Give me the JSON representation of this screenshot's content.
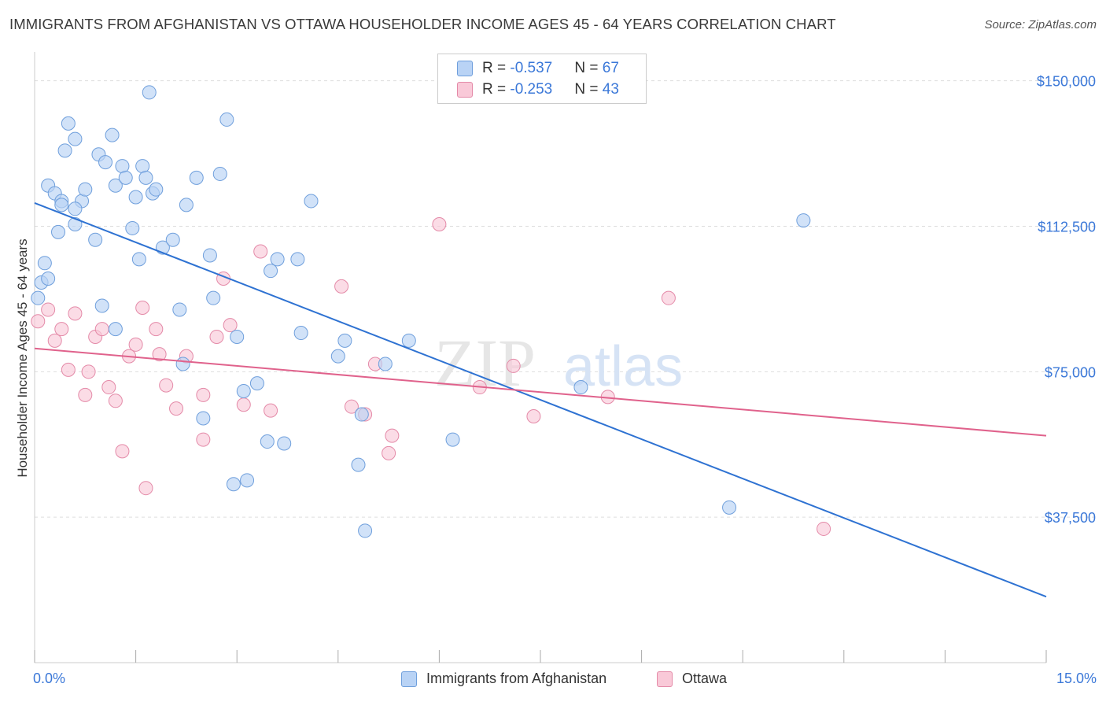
{
  "title": "IMMIGRANTS FROM AFGHANISTAN VS OTTAWA HOUSEHOLDER INCOME AGES 45 - 64 YEARS CORRELATION CHART",
  "source": "Source: ZipAtlas.com",
  "watermark": {
    "zip": "ZIP",
    "atlas": "atlas"
  },
  "legend": {
    "rows": [
      {
        "r_label": "R = ",
        "r_value": "-0.537",
        "n_label": "N = ",
        "n_value": "67"
      },
      {
        "r_label": "R = ",
        "r_value": "-0.253",
        "n_label": "N = ",
        "n_value": "43"
      }
    ]
  },
  "bottom_legend": {
    "series1": "Immigrants from Afghanistan",
    "series2": "Ottawa"
  },
  "x_axis": {
    "min_label": "0.0%",
    "max_label": "15.0%"
  },
  "colors": {
    "blue_fill": "#b9d3f5",
    "blue_stroke": "#6f9fdc",
    "blue_line": "#2e72d2",
    "pink_fill": "#f9c9d8",
    "pink_stroke": "#e48aa8",
    "pink_line": "#e0628c",
    "tick_label": "#3b78d8",
    "grid": "#dddddd"
  },
  "chart_data": {
    "type": "scatter",
    "title": "IMMIGRANTS FROM AFGHANISTAN VS OTTAWA HOUSEHOLDER INCOME AGES 45 - 64 YEARS CORRELATION CHART",
    "xlabel": "",
    "ylabel": "Householder Income Ages 45 - 64 years",
    "xlim": [
      0,
      15
    ],
    "ylim": [
      0,
      155000
    ],
    "y_ticks": [
      37500,
      75000,
      112500,
      150000
    ],
    "y_tick_labels": [
      "$37,500",
      "$75,000",
      "$112,500",
      "$150,000"
    ],
    "grid": true,
    "legend_position": "top-center",
    "series": [
      {
        "name": "Immigrants from Afghanistan",
        "color": "#6f9fdc",
        "points": [
          [
            0.05,
            94000
          ],
          [
            0.1,
            98000
          ],
          [
            0.15,
            103000
          ],
          [
            0.2,
            99000
          ],
          [
            0.2,
            123000
          ],
          [
            0.3,
            121000
          ],
          [
            0.35,
            111000
          ],
          [
            0.4,
            119000
          ],
          [
            0.4,
            118000
          ],
          [
            0.45,
            132000
          ],
          [
            0.5,
            139000
          ],
          [
            0.6,
            135000
          ],
          [
            0.6,
            113000
          ],
          [
            0.7,
            119000
          ],
          [
            0.75,
            122000
          ],
          [
            0.6,
            117000
          ],
          [
            0.9,
            109000
          ],
          [
            0.95,
            131000
          ],
          [
            1.0,
            92000
          ],
          [
            1.05,
            129000
          ],
          [
            1.15,
            136000
          ],
          [
            1.2,
            123000
          ],
          [
            1.3,
            128000
          ],
          [
            1.35,
            125000
          ],
          [
            1.45,
            112000
          ],
          [
            1.5,
            120000
          ],
          [
            1.55,
            104000
          ],
          [
            1.6,
            128000
          ],
          [
            1.65,
            125000
          ],
          [
            1.75,
            121000
          ],
          [
            1.7,
            147000
          ],
          [
            1.8,
            122000
          ],
          [
            1.9,
            107000
          ],
          [
            2.05,
            109000
          ],
          [
            2.15,
            91000
          ],
          [
            2.25,
            118000
          ],
          [
            2.4,
            125000
          ],
          [
            2.6,
            105000
          ],
          [
            2.65,
            94000
          ],
          [
            2.75,
            126000
          ],
          [
            2.85,
            140000
          ],
          [
            3.0,
            84000
          ],
          [
            3.1,
            70000
          ],
          [
            3.15,
            47000
          ],
          [
            3.3,
            72000
          ],
          [
            3.45,
            57000
          ],
          [
            3.5,
            101000
          ],
          [
            3.6,
            104000
          ],
          [
            3.7,
            56500
          ],
          [
            3.9,
            104000
          ],
          [
            3.95,
            85000
          ],
          [
            4.1,
            119000
          ],
          [
            4.5,
            79000
          ],
          [
            4.6,
            83000
          ],
          [
            4.8,
            51000
          ],
          [
            4.85,
            64000
          ],
          [
            4.9,
            34000
          ],
          [
            5.2,
            77000
          ],
          [
            5.55,
            83000
          ],
          [
            6.2,
            57500
          ],
          [
            8.1,
            71000
          ],
          [
            10.3,
            40000
          ],
          [
            11.4,
            114000
          ],
          [
            1.2,
            86000
          ],
          [
            2.2,
            77000
          ],
          [
            2.5,
            63000
          ],
          [
            2.95,
            46000
          ]
        ]
      },
      {
        "name": "Ottawa",
        "color": "#e48aa8",
        "points": [
          [
            0.05,
            88000
          ],
          [
            0.2,
            91000
          ],
          [
            0.3,
            83000
          ],
          [
            0.4,
            86000
          ],
          [
            0.5,
            75500
          ],
          [
            0.6,
            90000
          ],
          [
            0.75,
            69000
          ],
          [
            0.8,
            75000
          ],
          [
            0.9,
            84000
          ],
          [
            1.0,
            86000
          ],
          [
            1.1,
            71000
          ],
          [
            1.2,
            67500
          ],
          [
            1.3,
            54500
          ],
          [
            1.4,
            79000
          ],
          [
            1.5,
            82000
          ],
          [
            1.6,
            91500
          ],
          [
            1.65,
            45000
          ],
          [
            1.8,
            86000
          ],
          [
            1.85,
            79500
          ],
          [
            1.95,
            71500
          ],
          [
            2.1,
            65500
          ],
          [
            2.25,
            79000
          ],
          [
            2.5,
            69000
          ],
          [
            2.5,
            57500
          ],
          [
            2.7,
            84000
          ],
          [
            2.8,
            99000
          ],
          [
            2.9,
            87000
          ],
          [
            3.1,
            66500
          ],
          [
            3.35,
            106000
          ],
          [
            3.5,
            65000
          ],
          [
            4.55,
            97000
          ],
          [
            4.7,
            66000
          ],
          [
            4.9,
            64000
          ],
          [
            5.05,
            77000
          ],
          [
            5.25,
            54000
          ],
          [
            5.3,
            58500
          ],
          [
            6.0,
            113000
          ],
          [
            6.6,
            71000
          ],
          [
            7.1,
            76500
          ],
          [
            7.4,
            63500
          ],
          [
            8.5,
            68500
          ],
          [
            9.4,
            94000
          ],
          [
            11.7,
            34500
          ]
        ]
      }
    ],
    "trend_lines": [
      {
        "series": "Immigrants from Afghanistan",
        "x": [
          0,
          15
        ],
        "y": [
          118500,
          17000
        ]
      },
      {
        "series": "Ottawa",
        "x": [
          0,
          15
        ],
        "y": [
          81000,
          58500
        ]
      }
    ],
    "stats": [
      {
        "series": "Immigrants from Afghanistan",
        "R": -0.537,
        "N": 67
      },
      {
        "series": "Ottawa",
        "R": -0.253,
        "N": 43
      }
    ]
  }
}
